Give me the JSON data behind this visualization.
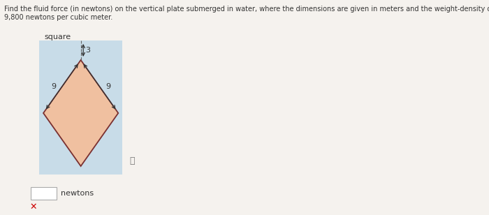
{
  "title_line1": "Find the fluid force (in newtons) on the vertical plate submerged in water, where the dimensions are given in meters and the weight-density of water is",
  "title_line2": "9,800 newtons per cubic meter.",
  "shape_label": "square",
  "bg_box_color": "#c8dce8",
  "diamond_fill_color": "#f0c0a0",
  "diamond_edge_color": "#7a3030",
  "label_9_left": "9",
  "label_9_right": "9",
  "label_3": "3",
  "answer_label": "newtons",
  "info_symbol": "ⓘ",
  "text_color_dark": "#333333",
  "arrow_color": "#333333",
  "x_mark_color": "#cc0000",
  "input_box_color": "#ffffff",
  "page_bg": "#f5f2ee"
}
